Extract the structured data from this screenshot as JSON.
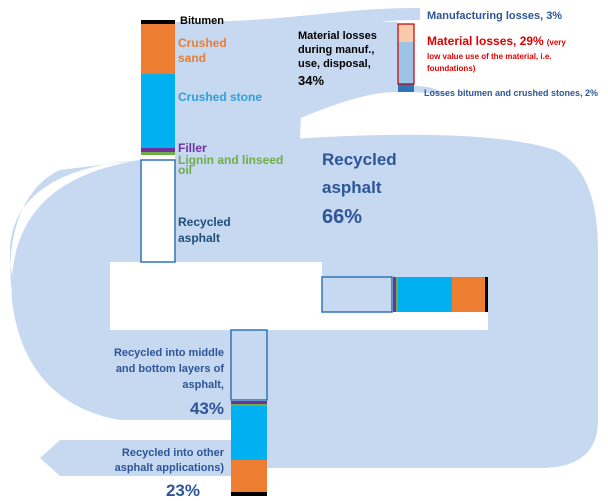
{
  "inputs": {
    "bitumen": [
      "Bitumen"
    ],
    "crushed_sand": [
      "Crushed",
      "sand"
    ],
    "crushed_stone": [
      "Crushed stone"
    ],
    "filler": [
      "Filler"
    ],
    "lignin": [
      "Lignin and linseed",
      "oil"
    ],
    "recycled_asphalt": [
      "Recycled",
      "asphalt"
    ]
  },
  "center": [
    "Recycled",
    "asphalt",
    "66%"
  ],
  "losses": {
    "total": [
      "Material losses",
      "during manuf.,",
      "use, disposal,",
      "34%"
    ],
    "manufacturing": "Manufacturing losses, 3%",
    "material": [
      "Material losses, 29%",
      "(very",
      "low value use of the material, i.e.",
      "foundations)"
    ],
    "bitumen_stones": "Losses bitumen and crushed stones, 2%"
  },
  "outputs": {
    "middle_bottom": [
      "Recycled  into middle",
      "and bottom layers of",
      "asphalt,",
      "43%"
    ],
    "other": [
      "Recycled  into other",
      "asphalt applications)",
      "23%"
    ]
  }
}
